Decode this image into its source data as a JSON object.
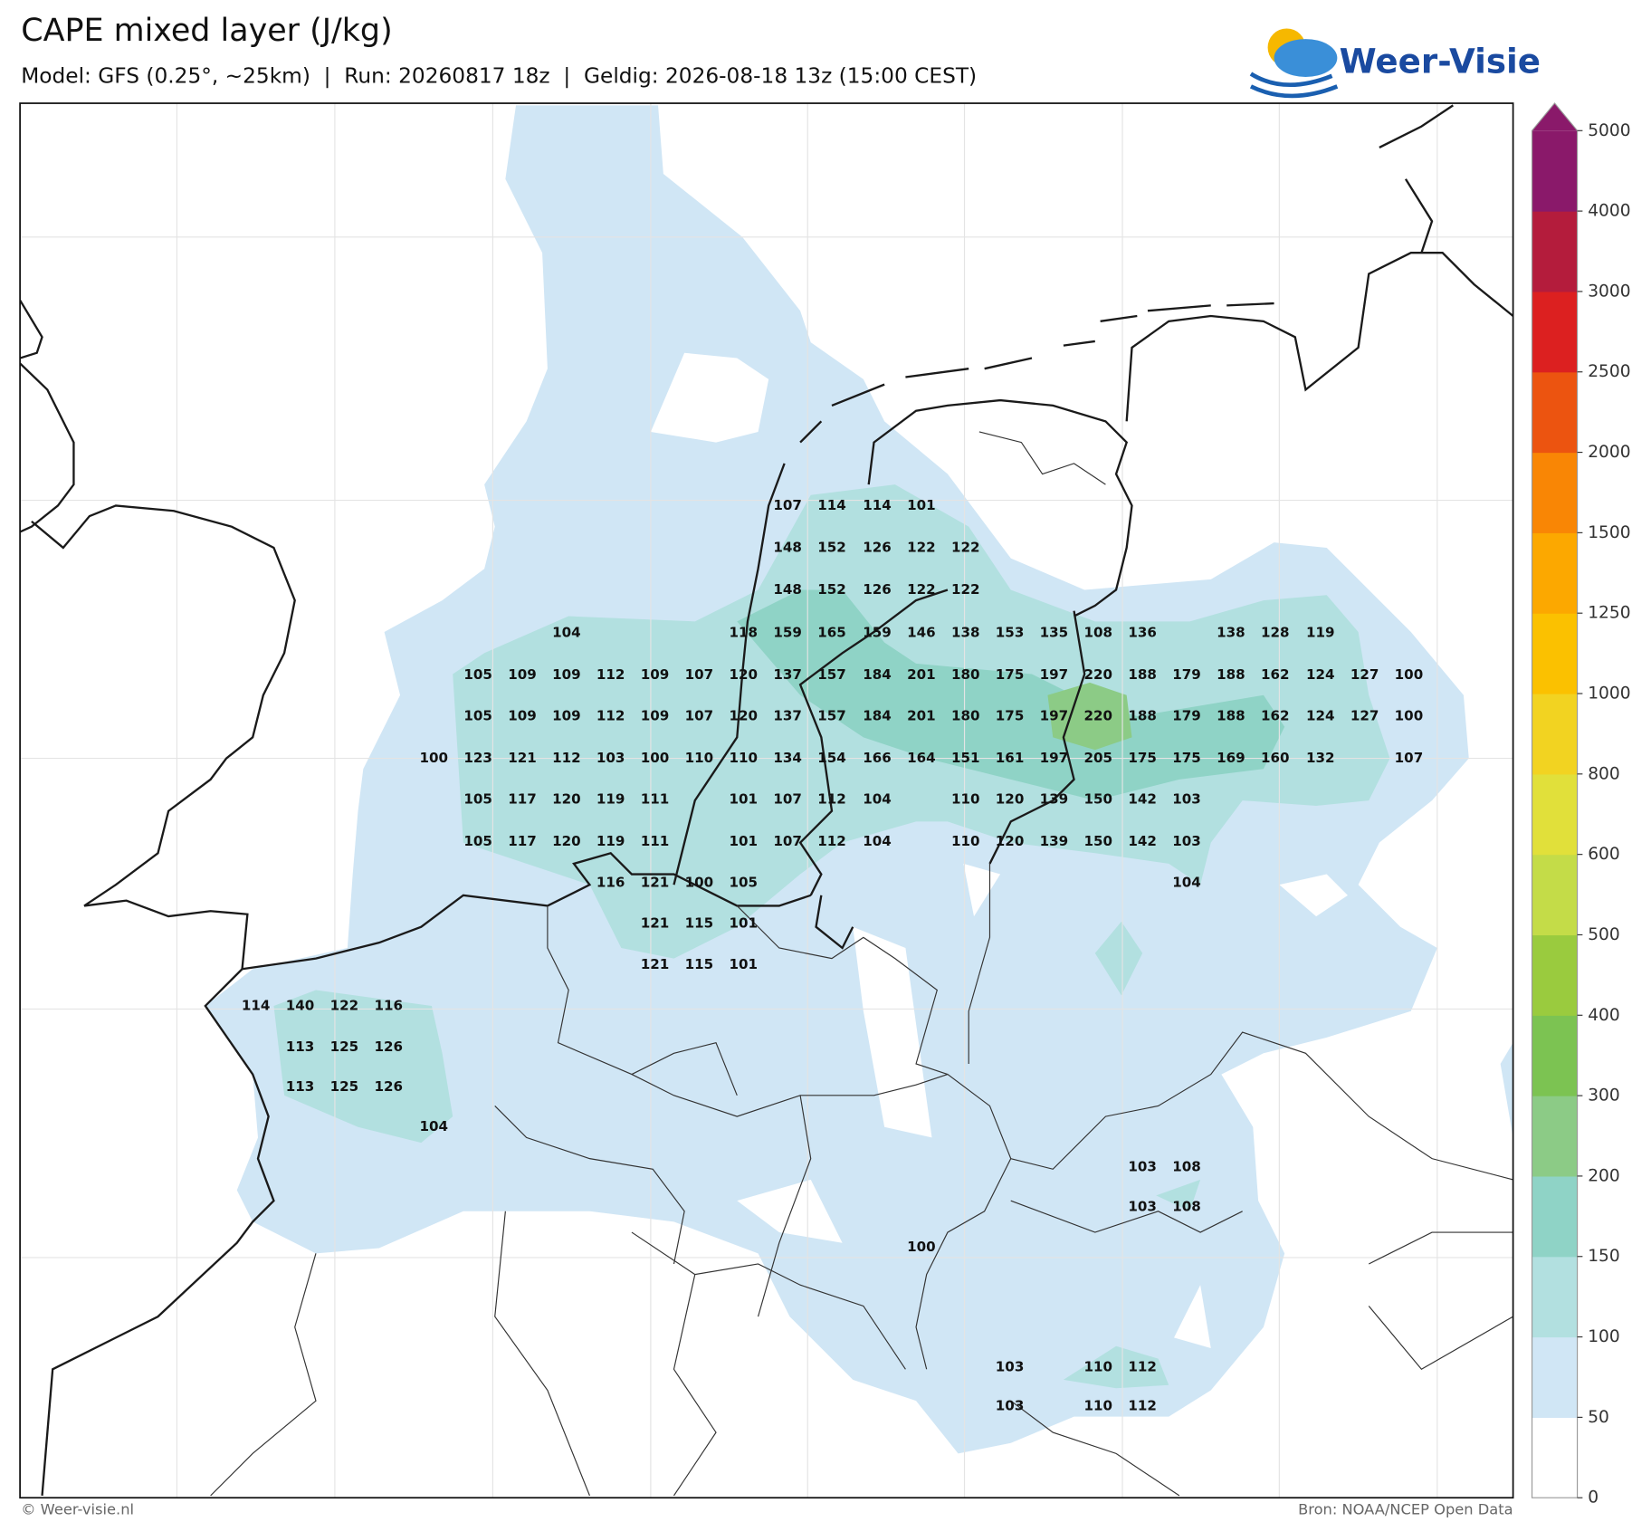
{
  "header": {
    "title": "CAPE mixed layer (J/kg)",
    "subtitle": "Model: GFS (0.25°, ~25km)  |  Run: 20260817 18z  |  Geldig: 2026-08-18 13z (15:00 CEST)"
  },
  "logo": "Weer-Visie",
  "colorbar": {
    "ticks": [
      0,
      50,
      100,
      150,
      200,
      300,
      400,
      500,
      600,
      800,
      1000,
      1250,
      1500,
      2000,
      2500,
      3000,
      4000,
      5000
    ],
    "colors": [
      "#ffffff",
      "#d0e6f5",
      "#b2e0e0",
      "#8fd3c6",
      "#8ccb86",
      "#7cc352",
      "#9acb3e",
      "#c4dc48",
      "#e1e03a",
      "#f2d321",
      "#fbc100",
      "#fca800",
      "#f98605",
      "#ec5410",
      "#dc2020",
      "#b41c3c",
      "#8a196a"
    ]
  },
  "labels": [
    107,
    114,
    114,
    101,
    148,
    152,
    126,
    122,
    122,
    148,
    152,
    126,
    122,
    122,
    104,
    118,
    159,
    165,
    159,
    146,
    138,
    153,
    135,
    108,
    136,
    138,
    128,
    119,
    105,
    109,
    109,
    112,
    109,
    107,
    120,
    137,
    157,
    184,
    201,
    180,
    175,
    197,
    220,
    188,
    179,
    188,
    162,
    124,
    127,
    100,
    105,
    109,
    109,
    112,
    109,
    107,
    120,
    137,
    157,
    184,
    201,
    180,
    175,
    197,
    220,
    188,
    179,
    188,
    162,
    124,
    127,
    100,
    100,
    123,
    121,
    112,
    103,
    100,
    110,
    110,
    134,
    154,
    166,
    164,
    151,
    161,
    197,
    205,
    175,
    175,
    169,
    160,
    132,
    107,
    105,
    117,
    120,
    119,
    111,
    101,
    107,
    112,
    104,
    110,
    120,
    139,
    150,
    142,
    103,
    105,
    117,
    120,
    119,
    111,
    101,
    107,
    112,
    104,
    110,
    120,
    139,
    150,
    142,
    103,
    116,
    121,
    100,
    105,
    104,
    121,
    115,
    101,
    121,
    115,
    101,
    114,
    140,
    122,
    116,
    113,
    125,
    126,
    113,
    125,
    126,
    104,
    103,
    108,
    103,
    108,
    100,
    103,
    110,
    112,
    103,
    110,
    112
  ],
  "footer": {
    "left": "© Weer-visie.nl",
    "right": "Bron: NOAA/NCEP Open Data"
  }
}
